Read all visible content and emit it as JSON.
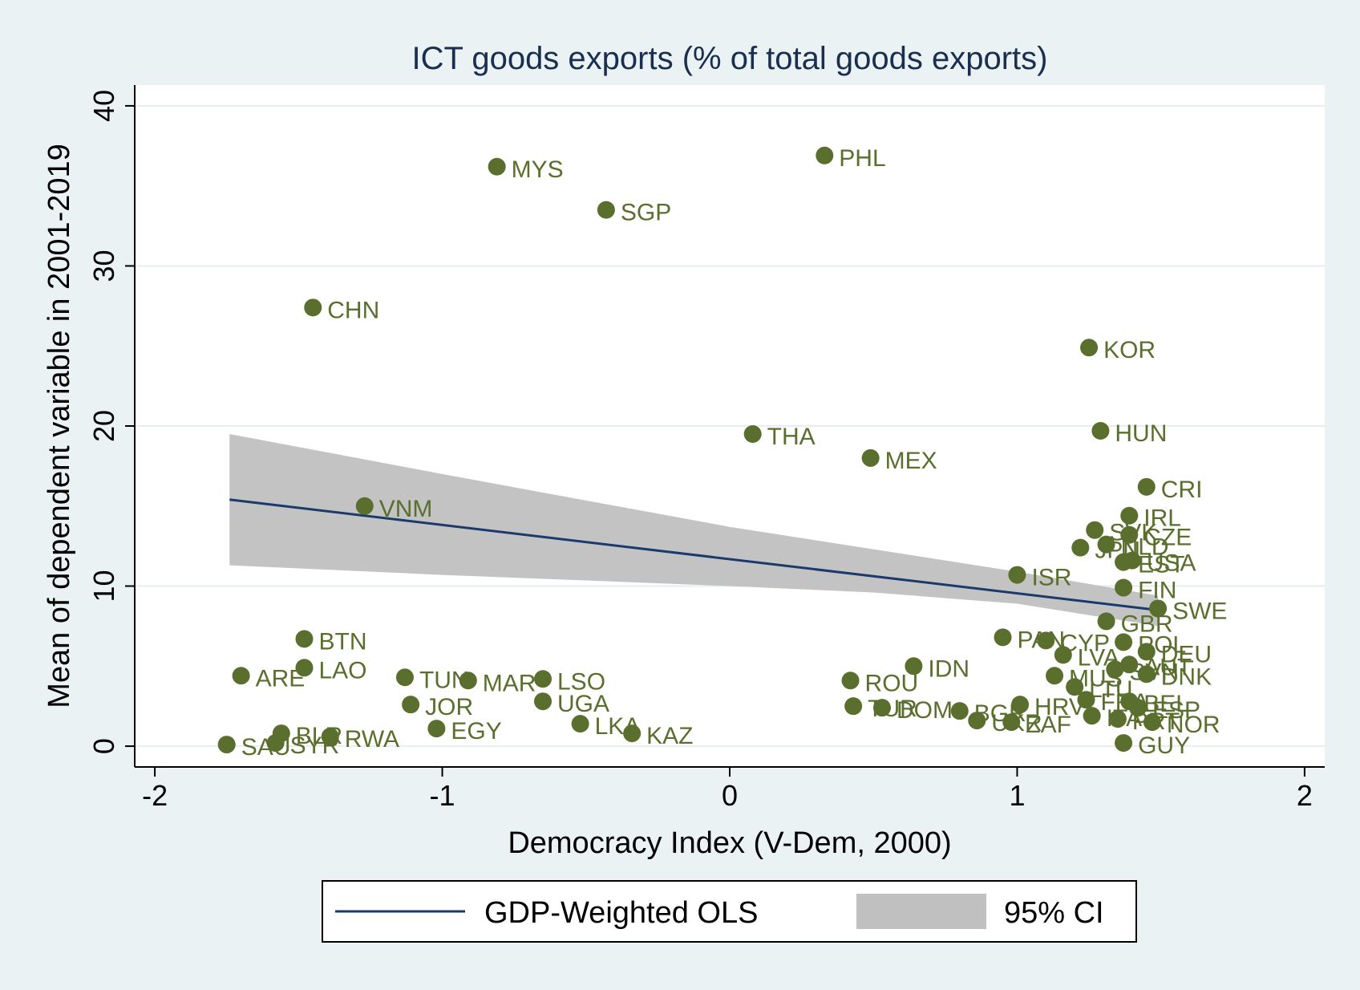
{
  "chart_data": {
    "type": "scatter",
    "title": "ICT goods exports (% of total goods exports)",
    "xlabel": "Democracy Index (V-Dem, 2000)",
    "ylabel": "Mean of dependent variable in 2001-2019",
    "xlim": [
      -2.07,
      2.07
    ],
    "ylim": [
      -1.3,
      41.3
    ],
    "xticks": [
      -2,
      -1,
      0,
      1,
      2
    ],
    "yticks": [
      0,
      10,
      20,
      30,
      40
    ],
    "grid": true,
    "colors": {
      "background": "#eaf2f3",
      "plot_bg": "#ffffff",
      "points": "#5a6e2d",
      "fit_line": "#1a3a6b",
      "ci_band": "#c0c0c0",
      "title": "#1a2e4f"
    },
    "points": [
      {
        "label": "PHL",
        "x": 0.33,
        "y": 36.9
      },
      {
        "label": "MYS",
        "x": -0.81,
        "y": 36.2
      },
      {
        "label": "SGP",
        "x": -0.43,
        "y": 33.5
      },
      {
        "label": "CHN",
        "x": -1.45,
        "y": 27.4
      },
      {
        "label": "KOR",
        "x": 1.25,
        "y": 24.9
      },
      {
        "label": "HUN",
        "x": 1.29,
        "y": 19.7
      },
      {
        "label": "THA",
        "x": 0.08,
        "y": 19.5
      },
      {
        "label": "MEX",
        "x": 0.49,
        "y": 18.0
      },
      {
        "label": "CRI",
        "x": 1.45,
        "y": 16.2
      },
      {
        "label": "VNM",
        "x": -1.27,
        "y": 15.0
      },
      {
        "label": "IRL",
        "x": 1.39,
        "y": 14.4
      },
      {
        "label": "SVK",
        "x": 1.27,
        "y": 13.5
      },
      {
        "label": "CZE",
        "x": 1.39,
        "y": 13.2
      },
      {
        "label": "NLD",
        "x": 1.31,
        "y": 12.6
      },
      {
        "label": "JPN",
        "x": 1.22,
        "y": 12.4
      },
      {
        "label": "USA",
        "x": 1.4,
        "y": 11.6
      },
      {
        "label": "EST",
        "x": 1.37,
        "y": 11.5
      },
      {
        "label": "ISR",
        "x": 1.0,
        "y": 10.7
      },
      {
        "label": "FIN",
        "x": 1.37,
        "y": 9.9
      },
      {
        "label": "SWE",
        "x": 1.49,
        "y": 8.6
      },
      {
        "label": "GBR",
        "x": 1.31,
        "y": 7.8
      },
      {
        "label": "PAN",
        "x": 0.95,
        "y": 6.8
      },
      {
        "label": "CYP",
        "x": 1.1,
        "y": 6.6
      },
      {
        "label": "POL",
        "x": 1.37,
        "y": 6.5
      },
      {
        "label": "DEU",
        "x": 1.45,
        "y": 5.9
      },
      {
        "label": "LVA",
        "x": 1.16,
        "y": 5.7
      },
      {
        "label": "BTN",
        "x": -1.48,
        "y": 6.7
      },
      {
        "label": "IDN",
        "x": 0.64,
        "y": 5.0
      },
      {
        "label": "LAO",
        "x": -1.48,
        "y": 4.9
      },
      {
        "label": "AUT",
        "x": 1.39,
        "y": 5.1
      },
      {
        "label": "SVN",
        "x": 1.34,
        "y": 4.8
      },
      {
        "label": "DNK",
        "x": 1.45,
        "y": 4.5
      },
      {
        "label": "MUS",
        "x": 1.13,
        "y": 4.4
      },
      {
        "label": "ARE",
        "x": -1.7,
        "y": 4.4
      },
      {
        "label": "TUN",
        "x": -1.13,
        "y": 4.3
      },
      {
        "label": "MAR",
        "x": -0.91,
        "y": 4.1
      },
      {
        "label": "LSO",
        "x": -0.65,
        "y": 4.2
      },
      {
        "label": "ROU",
        "x": 0.42,
        "y": 4.1
      },
      {
        "label": "LTU",
        "x": 1.2,
        "y": 3.7
      },
      {
        "label": "FRA",
        "x": 1.24,
        "y": 2.9
      },
      {
        "label": "BEL",
        "x": 1.39,
        "y": 2.8
      },
      {
        "label": "UGA",
        "x": -0.65,
        "y": 2.8
      },
      {
        "label": "JOR",
        "x": -1.11,
        "y": 2.6
      },
      {
        "label": "HRV",
        "x": 1.01,
        "y": 2.6
      },
      {
        "label": "ESP",
        "x": 1.42,
        "y": 2.4
      },
      {
        "label": "TUR",
        "x": 0.43,
        "y": 2.5
      },
      {
        "label": "DOM",
        "x": 0.53,
        "y": 2.4
      },
      {
        "label": "BGR",
        "x": 0.8,
        "y": 2.2
      },
      {
        "label": "ITA",
        "x": 1.26,
        "y": 1.9
      },
      {
        "label": "PRT",
        "x": 1.35,
        "y": 1.7
      },
      {
        "label": "NOR",
        "x": 1.47,
        "y": 1.5
      },
      {
        "label": "UKR",
        "x": 0.86,
        "y": 1.6
      },
      {
        "label": "ZAF",
        "x": 0.98,
        "y": 1.5
      },
      {
        "label": "EGY",
        "x": -1.02,
        "y": 1.1
      },
      {
        "label": "LKA",
        "x": -0.52,
        "y": 1.4
      },
      {
        "label": "BLR",
        "x": -1.56,
        "y": 0.8
      },
      {
        "label": "RWA",
        "x": -1.39,
        "y": 0.6
      },
      {
        "label": "KAZ",
        "x": -0.34,
        "y": 0.8
      },
      {
        "label": "SAU",
        "x": -1.75,
        "y": 0.1
      },
      {
        "label": "SYR",
        "x": -1.58,
        "y": 0.2
      },
      {
        "label": "GUY",
        "x": 1.37,
        "y": 0.2
      }
    ],
    "fit_line": {
      "x": [
        -1.74,
        1.49
      ],
      "y": [
        15.4,
        8.5
      ]
    },
    "ci_band": {
      "x": [
        -1.74,
        -1.0,
        0.0,
        0.5,
        1.0,
        1.49
      ],
      "upper": [
        19.5,
        17.0,
        13.7,
        12.3,
        10.9,
        9.4
      ],
      "lower": [
        11.3,
        10.7,
        10.0,
        9.6,
        8.9,
        7.5
      ]
    }
  },
  "legend": {
    "items": [
      {
        "label": "GDP-Weighted OLS"
      },
      {
        "label": "95% CI"
      }
    ]
  }
}
